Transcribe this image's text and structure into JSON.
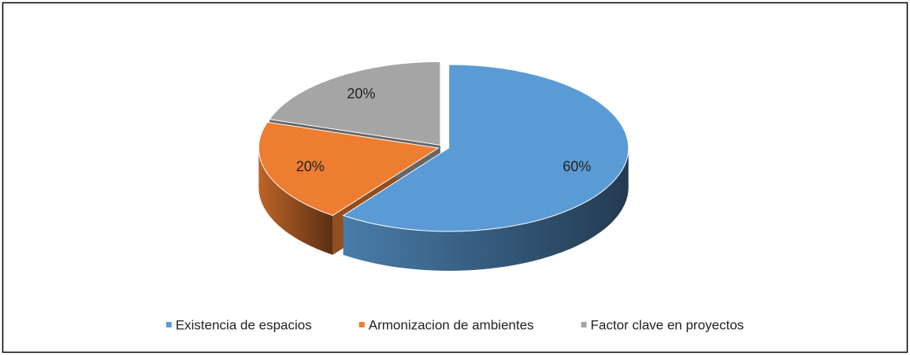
{
  "chart_data": {
    "type": "pie3d",
    "categories": [
      "Existencia de espacios",
      "Armonizacion de ambientes",
      "Factor clave en proyectos"
    ],
    "values": [
      60,
      20,
      20
    ],
    "value_labels": [
      "60%",
      "20%",
      "20%"
    ],
    "colors": [
      "#5b9bd5",
      "#ed7d31",
      "#a5a5a5"
    ],
    "legend": "bottom"
  }
}
